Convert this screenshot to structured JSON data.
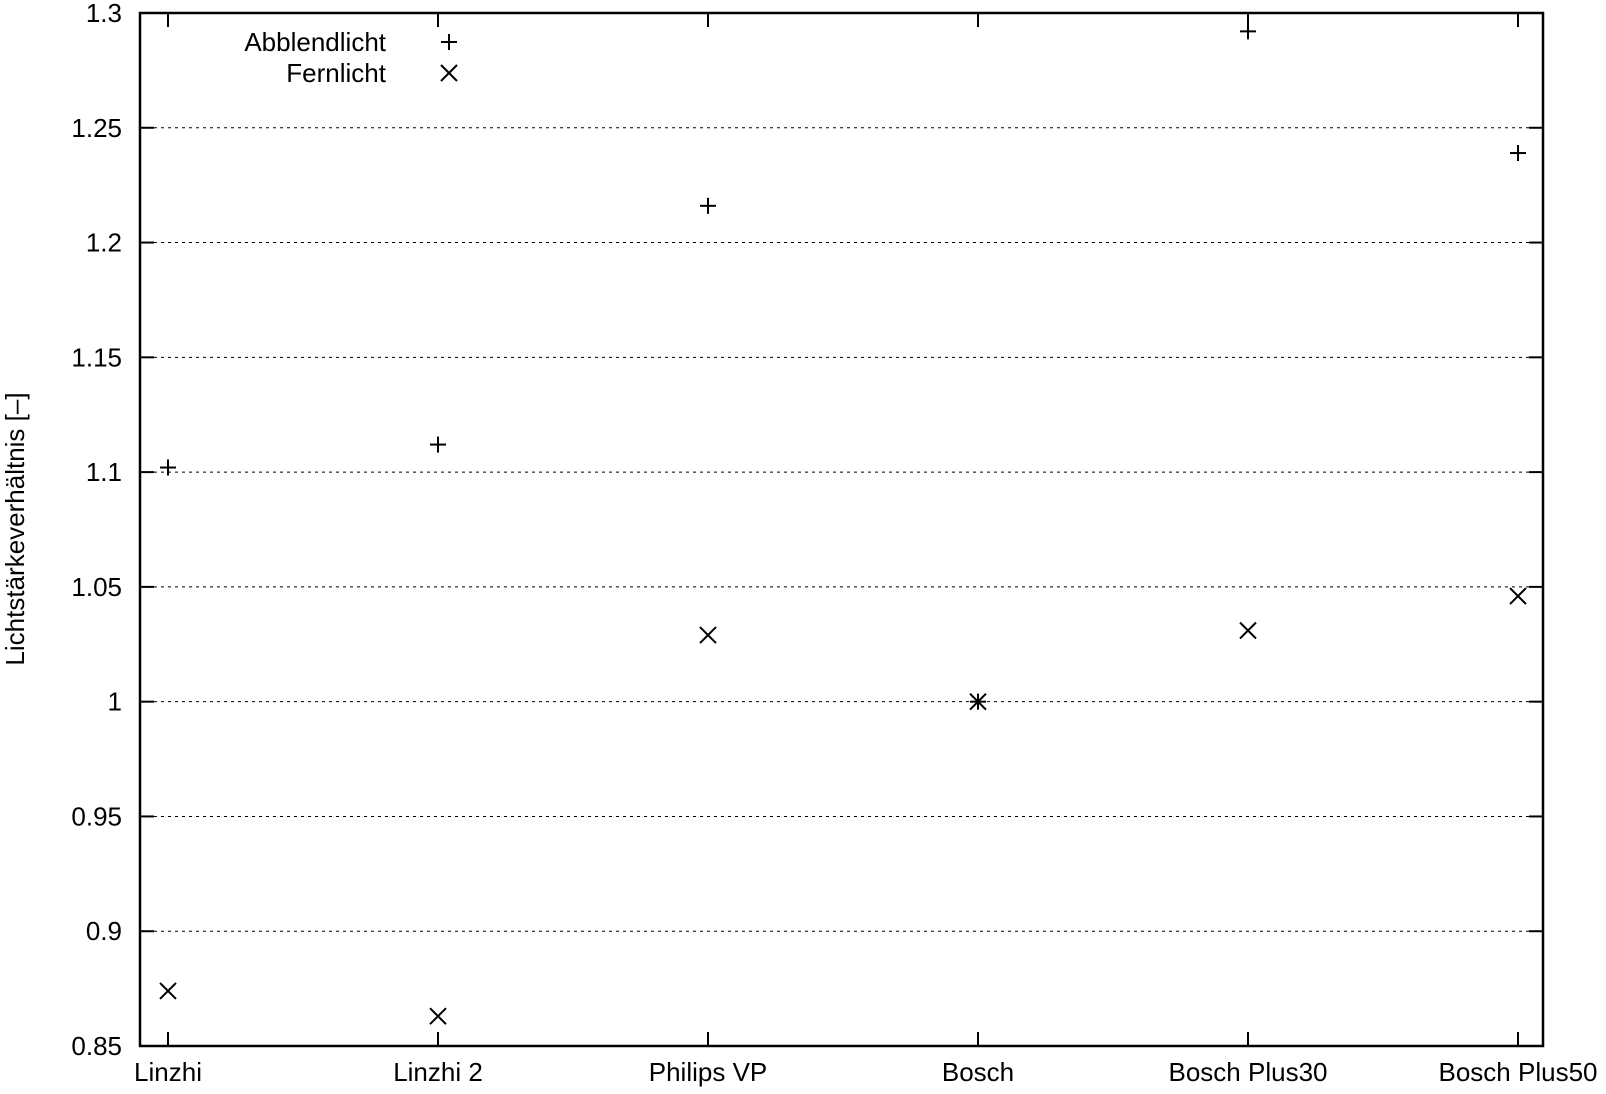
{
  "chart_data": {
    "type": "scatter",
    "categories": [
      "Linzhi",
      "Linzhi 2",
      "Philips VP",
      "Bosch",
      "Bosch Plus30",
      "Bosch Plus50"
    ],
    "series": [
      {
        "name": "Abblendlicht",
        "marker": "plus",
        "values": [
          1.102,
          1.112,
          1.216,
          1.0,
          1.292,
          1.239
        ]
      },
      {
        "name": "Fernlicht",
        "marker": "cross",
        "values": [
          0.874,
          0.863,
          1.029,
          1.0,
          1.031,
          1.046
        ]
      }
    ],
    "ylabel": "Lichtstärkeverhältnis [–]",
    "ylim": [
      0.85,
      1.3
    ],
    "yticks": [
      "0.85",
      "0.9",
      "0.95",
      "1",
      "1.05",
      "1.1",
      "1.15",
      "1.2",
      "1.25",
      "1.3"
    ],
    "grid": "horizontal-dashed",
    "legend_position": "top-left",
    "color": "#000000"
  }
}
